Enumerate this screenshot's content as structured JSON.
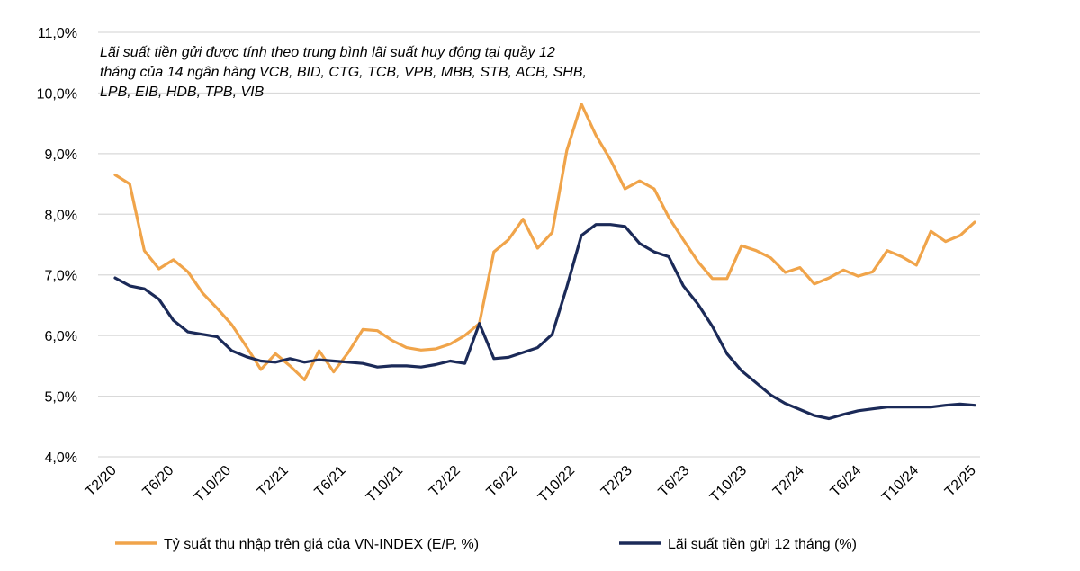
{
  "chart_data": {
    "type": "line",
    "title": "",
    "xlabel": "",
    "ylabel": "",
    "ylim": [
      4.0,
      11.0
    ],
    "y_ticks": [
      "4,0%",
      "5,0%",
      "6,0%",
      "7,0%",
      "8,0%",
      "9,0%",
      "10,0%",
      "11,0%"
    ],
    "x_ticks": [
      "T2/20",
      "T6/20",
      "T10/20",
      "T2/21",
      "T6/21",
      "T10/21",
      "T2/22",
      "T6/22",
      "T10/22",
      "T2/23",
      "T6/23",
      "T10/23",
      "T2/24",
      "T6/24",
      "T10/24",
      "T2/25"
    ],
    "x_tick_months": [
      0,
      4,
      8,
      12,
      16,
      20,
      24,
      28,
      32,
      36,
      40,
      44,
      48,
      52,
      56,
      60
    ],
    "x_range_months": [
      0,
      60
    ],
    "grid": true,
    "legend_position": "bottom",
    "note_lines": [
      "Lãi suất tiền gửi được tính theo trung bình lãi suất huy động tại quầy 12",
      "tháng của 14 ngân hàng VCB, BID, CTG, TCB, VPB, MBB, STB, ACB, SHB,",
      "LPB, EIB, HDB, TPB, VIB"
    ],
    "series": [
      {
        "name": "Tỷ suất thu nhập trên giá của VN-INDEX (E/P, %)",
        "color": "#F0A44A",
        "values": [
          8.65,
          8.5,
          7.4,
          7.1,
          7.25,
          7.05,
          6.7,
          6.45,
          6.18,
          5.82,
          5.44,
          5.7,
          5.5,
          5.27,
          5.75,
          5.4,
          5.72,
          6.1,
          6.08,
          5.92,
          5.8,
          5.76,
          5.78,
          5.86,
          6.0,
          6.2,
          7.38,
          7.58,
          7.92,
          7.44,
          7.7,
          9.05,
          9.82,
          9.3,
          8.9,
          8.42,
          8.55,
          8.42,
          7.95,
          7.58,
          7.22,
          6.94,
          6.94,
          7.48,
          7.4,
          7.28,
          7.04,
          7.12,
          6.85,
          6.95,
          7.08,
          6.98,
          7.05,
          7.4,
          7.3,
          7.16,
          7.72,
          7.55,
          7.65,
          7.87
        ]
      },
      {
        "name": "Lãi suất tiền gửi 12 tháng (%)",
        "color": "#1B2A58",
        "values": [
          6.95,
          6.82,
          6.77,
          6.6,
          6.25,
          6.06,
          6.02,
          5.98,
          5.75,
          5.65,
          5.58,
          5.56,
          5.62,
          5.56,
          5.6,
          5.58,
          5.56,
          5.54,
          5.48,
          5.5,
          5.5,
          5.48,
          5.52,
          5.58,
          5.54,
          6.2,
          5.62,
          5.64,
          5.72,
          5.8,
          6.02,
          6.8,
          7.65,
          7.83,
          7.83,
          7.8,
          7.52,
          7.38,
          7.3,
          6.82,
          6.52,
          6.15,
          5.7,
          5.42,
          5.22,
          5.02,
          4.88,
          4.78,
          4.68,
          4.63,
          4.7,
          4.76,
          4.79,
          4.82,
          4.82,
          4.82,
          4.82,
          4.85,
          4.87,
          4.85
        ]
      }
    ]
  }
}
